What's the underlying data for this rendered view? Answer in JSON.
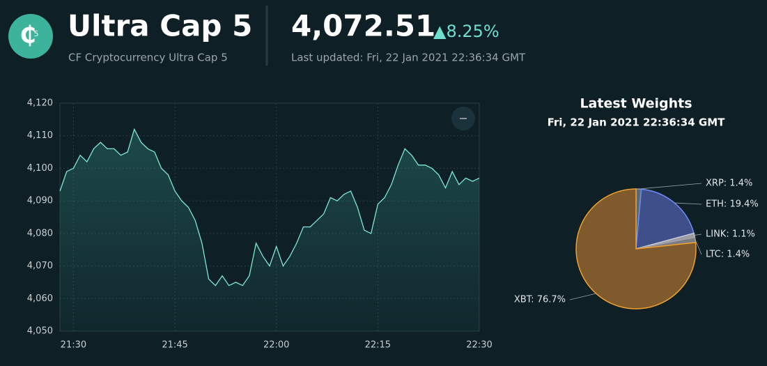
{
  "header": {
    "logo_text": "5",
    "title": "Ultra Cap 5",
    "subtitle": "CF Cryptocurrency Ultra Cap 5",
    "price": "4,072.51",
    "change": "▲8.25%",
    "last_updated": "Last updated: Fri, 22 Jan 2021 22:36:34 GMT"
  },
  "chart_data": [
    {
      "type": "line",
      "x": [
        "21:28",
        "21:29",
        "21:30",
        "21:31",
        "21:32",
        "21:33",
        "21:34",
        "21:35",
        "21:36",
        "21:37",
        "21:38",
        "21:39",
        "21:40",
        "21:41",
        "21:42",
        "21:43",
        "21:44",
        "21:45",
        "21:46",
        "21:47",
        "21:48",
        "21:49",
        "21:50",
        "21:51",
        "21:52",
        "21:53",
        "21:54",
        "21:55",
        "21:56",
        "21:57",
        "21:58",
        "21:59",
        "22:00",
        "22:01",
        "22:02",
        "22:03",
        "22:04",
        "22:05",
        "22:06",
        "22:07",
        "22:08",
        "22:09",
        "22:10",
        "22:11",
        "22:12",
        "22:13",
        "22:14",
        "22:15",
        "22:16",
        "22:17",
        "22:18",
        "22:19",
        "22:20",
        "22:21",
        "22:22",
        "22:23",
        "22:24",
        "22:25",
        "22:26",
        "22:27",
        "22:28",
        "22:29",
        "22:30"
      ],
      "series": [
        {
          "color": "#7ee8d8",
          "values": [
            4093,
            4099,
            4100,
            4104,
            4102,
            4106,
            4108,
            4106,
            4106,
            4104,
            4105,
            4112,
            4108,
            4106,
            4105,
            4100,
            4098,
            4093,
            4090,
            4088,
            4084,
            4077,
            4066,
            4064,
            4067,
            4064,
            4065,
            4064,
            4067,
            4077,
            4073,
            4070,
            4076,
            4070,
            4073,
            4077,
            4082,
            4082,
            4084,
            4086,
            4091,
            4090,
            4092,
            4093,
            4088,
            4081,
            4080,
            4089,
            4091,
            4095,
            4101,
            4106,
            4104,
            4101,
            4101,
            4100,
            4098,
            4094,
            4099,
            4095,
            4097,
            4096,
            4097
          ]
        }
      ],
      "xlim": [
        "21:28",
        "22:30"
      ],
      "xticks": [
        "21:30",
        "21:45",
        "22:00",
        "22:15",
        "22:30"
      ],
      "ylim": [
        4050,
        4120
      ],
      "yticks": [
        {
          "value": 4050,
          "label": "4,050"
        },
        {
          "value": 4060,
          "label": "4,060"
        },
        {
          "value": 4070,
          "label": "4,070"
        },
        {
          "value": 4080,
          "label": "4,080"
        },
        {
          "value": 4090,
          "label": "4,090"
        },
        {
          "value": 4100,
          "label": "4,100"
        },
        {
          "value": 4110,
          "label": "4,110"
        },
        {
          "value": 4120,
          "label": "4,120"
        }
      ],
      "grid": true
    },
    {
      "type": "pie",
      "title": "Latest Weights",
      "subtitle": "Fri, 22 Jan 2021 22:36:34 GMT",
      "categories": [
        "XRP",
        "ETH",
        "LINK",
        "LTC",
        "XBT"
      ],
      "values": [
        1.4,
        19.4,
        1.1,
        1.4,
        76.7
      ],
      "value_labels": [
        "XRP: 1.4%",
        "ETH: 19.4%",
        "LINK: 1.1%",
        "LTC: 1.4%",
        "XBT: 76.7%"
      ],
      "colors": [
        "#8a9aa0",
        "#6d8ef5",
        "#c8c8d0",
        "#a0a0a8",
        "#f0a030"
      ]
    }
  ]
}
